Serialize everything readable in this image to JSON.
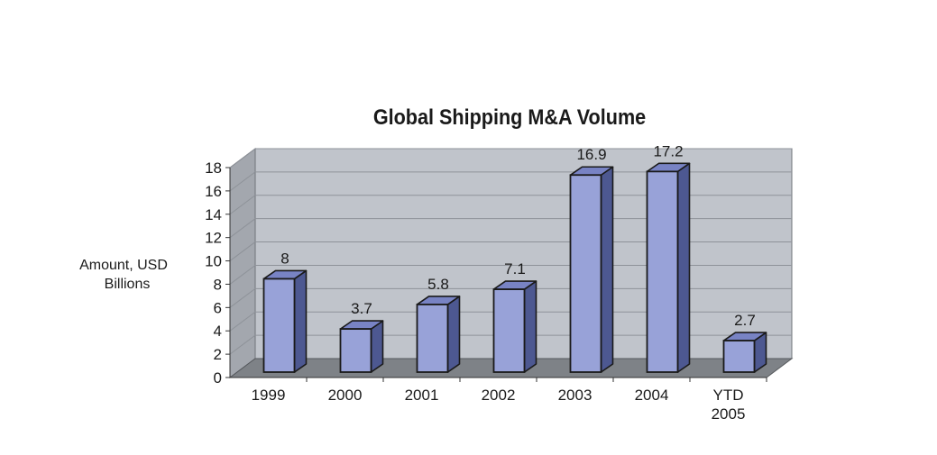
{
  "chart_data": {
    "type": "bar",
    "title": "Global Shipping M&A Volume",
    "ylabel_lines": [
      "Amount, USD",
      "Billions"
    ],
    "xlabel": "",
    "categories": [
      [
        "1999"
      ],
      [
        "2000"
      ],
      [
        "2001"
      ],
      [
        "2002"
      ],
      [
        "2003"
      ],
      [
        "2004"
      ],
      [
        "YTD",
        "2005"
      ]
    ],
    "values": [
      8,
      3.7,
      5.8,
      7.1,
      16.9,
      17.2,
      2.7
    ],
    "data_labels": [
      "8",
      "3.7",
      "5.8",
      "7.1",
      "16.9",
      "17.2",
      "2.7"
    ],
    "ylim": [
      0,
      18
    ],
    "yticks": [
      0,
      2,
      4,
      6,
      8,
      10,
      12,
      14,
      16,
      18
    ],
    "grid": true,
    "legend": "none",
    "style": "3d",
    "colors": {
      "bar_front": "#98a2d8",
      "bar_side": "#4d5891",
      "bar_top": "#7883c4",
      "back_wall": "#c0c4cb",
      "side_wall": "#a3a7ae",
      "floor": "#7e8287",
      "grid": "#8e9299",
      "outline": "#1a1a1a"
    }
  }
}
